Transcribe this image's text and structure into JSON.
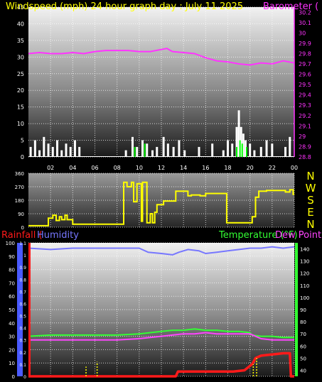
{
  "colors": {
    "background": "#000000",
    "wind": "#ffffff",
    "gust_marks": "#00ff00",
    "barometer": "#ff33ff",
    "direction": "#ffff00",
    "humidity": "#7777ff",
    "rainfall": "#ff1a1a",
    "temperature": "#33ff33",
    "dewpoint": "#ff44ff",
    "rain_rate": "#ffff00",
    "axis_text": "#ffffff",
    "grid": "#ffffff"
  },
  "chart_data": [
    {
      "type": "area",
      "title": "Windspeed (mph)   24 hour graph day : July 11 2025",
      "right_axis_title": "Barometer (",
      "ylim": [
        0,
        45
      ],
      "y_ticks": [
        "0",
        "5",
        "10",
        "15",
        "20",
        "25",
        "30",
        "35",
        "40",
        "45"
      ],
      "y2lim": [
        28.8,
        30.25
      ],
      "y2_ticks": [
        "28.8",
        "28.9",
        "29",
        "29.1",
        "29.2",
        "29.3",
        "29.4",
        "29.5",
        "29.6",
        "29.7",
        "29.8",
        "29.9",
        "30",
        "30.1",
        "30.2"
      ],
      "x_ticks": [
        "02",
        "04",
        "06",
        "08",
        "10",
        "12",
        "14",
        "16",
        "18",
        "20",
        "22",
        "00"
      ],
      "grid": true,
      "series": [
        {
          "axis": "right",
          "x": [
            0,
            1,
            2,
            3,
            4,
            5,
            6,
            7,
            8,
            9,
            10,
            11,
            12,
            12.5,
            13,
            14,
            15,
            16,
            17,
            18,
            19,
            20,
            21,
            22,
            23,
            24
          ],
          "values": [
            29.8,
            29.81,
            29.8,
            29.8,
            29.81,
            29.8,
            29.82,
            29.83,
            29.83,
            29.83,
            29.82,
            29.82,
            29.84,
            29.85,
            29.82,
            29.81,
            29.8,
            29.76,
            29.73,
            29.72,
            29.7,
            29.69,
            29.71,
            29.7,
            29.73,
            29.71
          ]
        },
        {
          "axis": "left",
          "style": "bars",
          "x": [
            0.2,
            0.6,
            1.0,
            1.4,
            1.8,
            2.2,
            2.6,
            3.0,
            3.4,
            3.8,
            4.2,
            4.6,
            8.8,
            9.4,
            9.8,
            10.3,
            10.7,
            11.2,
            11.6,
            12.2,
            12.6,
            13.1,
            13.6,
            14.1,
            15.4,
            16.6,
            17.6,
            18.0,
            18.4,
            18.8,
            19.0,
            19.2,
            19.4,
            19.6,
            20.0,
            20.4,
            21.0,
            21.5,
            22.0,
            23.2,
            23.6
          ],
          "values": [
            3,
            5,
            2,
            6,
            4,
            3,
            5,
            2,
            4,
            3,
            5,
            3,
            2,
            6,
            3,
            5,
            4,
            2,
            3,
            6,
            4,
            3,
            5,
            2,
            3,
            4,
            2,
            5,
            4,
            9,
            14,
            9,
            7,
            5,
            4,
            2,
            3,
            5,
            4,
            3,
            6
          ]
        },
        {
          "axis": "left",
          "style": "marks",
          "x": [
            9.6,
            10.5,
            18.8,
            19.1,
            19.3,
            19.7
          ],
          "values": [
            3,
            4,
            3,
            5,
            4,
            3
          ]
        }
      ]
    },
    {
      "type": "line",
      "right_axis_labels": [
        "N",
        "W",
        "S",
        "E",
        "N"
      ],
      "ylim": [
        0,
        360
      ],
      "y_ticks": [
        "0",
        "90",
        "180",
        "270",
        "360"
      ],
      "grid": true,
      "series": [
        {
          "x": [
            0,
            1.6,
            1.8,
            2.2,
            2.5,
            2.8,
            3.0,
            3.3,
            3.5,
            4.0,
            8.0,
            8.5,
            8.6,
            8.9,
            9.3,
            9.5,
            9.8,
            10.0,
            10.2,
            10.3,
            10.5,
            10.7,
            11.0,
            11.2,
            11.4,
            11.6,
            12.0,
            12.2,
            13.0,
            13.3,
            14.0,
            14.4,
            14.7,
            15.5,
            16.0,
            17.5,
            17.9,
            18.0,
            19.0,
            20.0,
            20.2,
            20.5,
            20.8,
            21.5,
            23.2,
            23.6,
            23.9,
            24.0
          ],
          "values": [
            10,
            10,
            60,
            80,
            45,
            70,
            50,
            80,
            50,
            20,
            20,
            20,
            300,
            270,
            300,
            170,
            290,
            290,
            40,
            300,
            300,
            30,
            90,
            30,
            100,
            150,
            150,
            175,
            175,
            240,
            240,
            210,
            215,
            210,
            225,
            225,
            30,
            30,
            30,
            30,
            70,
            200,
            240,
            245,
            235,
            250,
            220,
            220
          ]
        }
      ]
    },
    {
      "type": "line",
      "left_axis_title": "Rainfall (",
      "left_axis_title_2": "Humidity",
      "right_axis_title": "Temperature (°F)",
      "right_axis_title_2": "Dew Point",
      "ylim": [
        0,
        100
      ],
      "y_ticks": [
        "0",
        "10",
        "20",
        "30",
        "40",
        "50",
        "60",
        "70",
        "80",
        "90",
        "100"
      ],
      "rainlim": [
        0,
        1.1
      ],
      "rain_ticks": [
        "0",
        "0.1",
        "0.2",
        "0.3",
        "0.4",
        "0.5",
        "0.6",
        "0.7",
        "0.8",
        "0.9",
        "1",
        "1.1"
      ],
      "y2lim": [
        35,
        145
      ],
      "y2_ticks": [
        "40",
        "50",
        "60",
        "70",
        "80",
        "90",
        "100",
        "110",
        "120",
        "130",
        "140"
      ],
      "grid": true,
      "series": [
        {
          "name": "Humidity",
          "axis": "humidity",
          "x": [
            0,
            2,
            4,
            6,
            8,
            10,
            10.8,
            12,
            13,
            13.6,
            14.4,
            15.4,
            16,
            17,
            18,
            19,
            20,
            21,
            22,
            23,
            24
          ],
          "values": [
            96,
            95,
            96,
            96,
            96,
            96,
            93,
            92,
            91,
            93,
            95,
            94,
            92,
            93,
            94,
            95,
            96,
            96,
            97,
            96,
            97
          ]
        },
        {
          "name": "Temperature",
          "axis": "temperature",
          "x": [
            0,
            2,
            4,
            6,
            8,
            10,
            11,
            12,
            13,
            14,
            15,
            16,
            17,
            18,
            19,
            20,
            20.2,
            21,
            22,
            23,
            24
          ],
          "values": [
            68,
            69,
            69,
            69,
            69,
            70,
            71,
            72,
            73,
            73,
            74,
            73,
            73,
            72,
            72,
            71,
            69,
            68,
            68,
            67,
            67
          ]
        },
        {
          "name": "Dew Point",
          "axis": "temperature",
          "x": [
            0,
            2,
            4,
            6,
            8,
            10,
            11,
            12,
            13,
            14,
            15,
            16,
            17,
            18,
            19,
            20,
            21,
            22,
            23,
            24
          ],
          "values": [
            65,
            65,
            65,
            65,
            65,
            66,
            67,
            68,
            69,
            70,
            70,
            71,
            70,
            70,
            70,
            70,
            66,
            65,
            65,
            65
          ]
        },
        {
          "name": "Rainfall",
          "axis": "rain",
          "x": [
            0,
            7.5,
            8,
            13.3,
            13.5,
            16,
            18.5,
            19.5,
            20.2,
            20.5,
            21,
            22,
            23,
            23.6,
            23.7,
            24
          ],
          "values": [
            0,
            0,
            0,
            0,
            0.04,
            0.04,
            0.04,
            0.05,
            0.1,
            0.15,
            0.17,
            0.18,
            0.19,
            0.19,
            0,
            0
          ]
        },
        {
          "name": "Rain rate",
          "axis": "rain",
          "style": "spikes",
          "x": [
            5.2,
            6.2,
            20.3,
            20.6
          ],
          "values": [
            0.08,
            0.12,
            0.1,
            0.15
          ]
        }
      ]
    }
  ]
}
